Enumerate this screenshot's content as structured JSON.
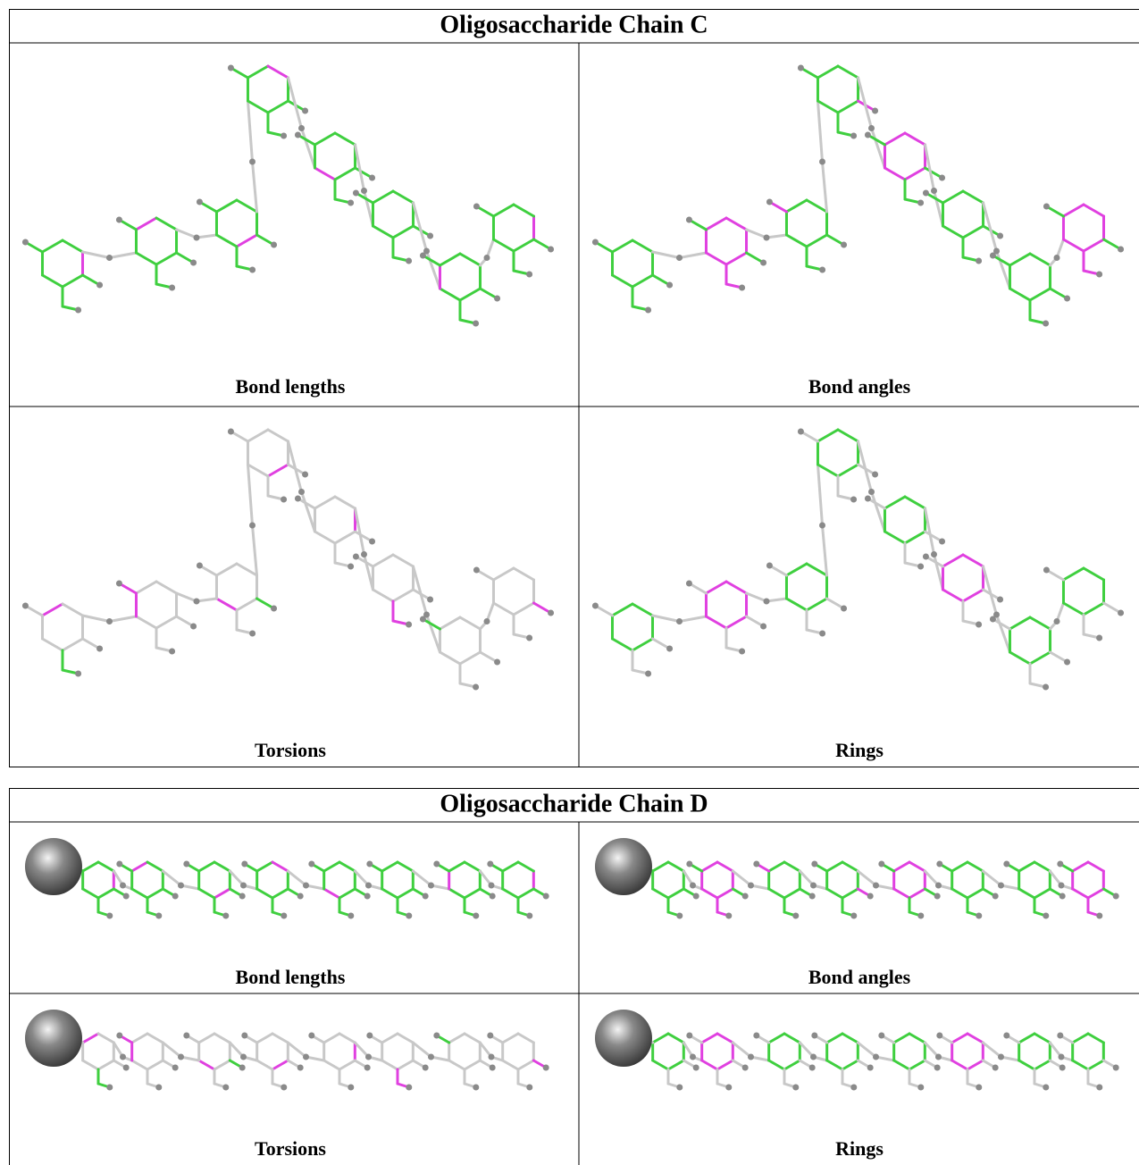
{
  "figures": [
    {
      "title": "Oligosaccharide Chain C",
      "panels": [
        "Bond lengths",
        "Bond angles",
        "Torsions",
        "Rings"
      ]
    },
    {
      "title": "Oligosaccharide Chain D",
      "panels": [
        "Bond lengths",
        "Bond angles",
        "Torsions",
        "Rings"
      ]
    }
  ]
}
